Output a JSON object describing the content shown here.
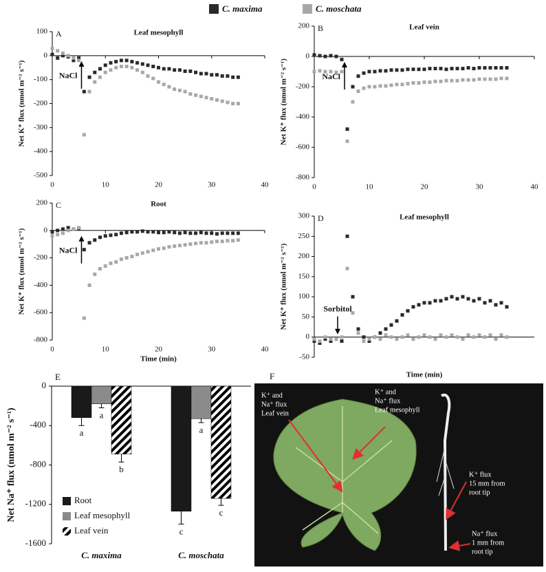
{
  "chart_data": [
    {
      "type": "scatter",
      "panel": "A",
      "title": "Leaf mesophyll",
      "ylabel": "Net K⁺ flux (nmol m⁻² s⁻¹)",
      "annotation": {
        "text": "NaCl",
        "x": 5.5
      },
      "x": [
        0,
        1,
        2,
        3,
        4,
        5,
        6,
        7,
        8,
        9,
        10,
        11,
        12,
        13,
        14,
        15,
        16,
        17,
        18,
        19,
        20,
        21,
        22,
        23,
        24,
        25,
        26,
        27,
        28,
        29,
        30,
        31,
        32,
        33,
        34,
        35
      ],
      "series": [
        {
          "name": "C. maxima",
          "color": "#2a2a2a",
          "values": [
            5,
            -10,
            0,
            -5,
            -20,
            -10,
            -150,
            -90,
            -70,
            -55,
            -40,
            -30,
            -25,
            -20,
            -20,
            -25,
            -30,
            -35,
            -40,
            -45,
            -50,
            -55,
            -55,
            -60,
            -60,
            -65,
            -65,
            -70,
            -75,
            -75,
            -80,
            -80,
            -85,
            -85,
            -90,
            -90
          ]
        },
        {
          "name": "C. moschata",
          "color": "#a8a8a8",
          "values": [
            30,
            20,
            10,
            0,
            -10,
            -20,
            -330,
            -150,
            -110,
            -90,
            -70,
            -60,
            -50,
            -45,
            -45,
            -50,
            -60,
            -70,
            -85,
            -95,
            -110,
            -120,
            -130,
            -140,
            -145,
            -150,
            -160,
            -165,
            -170,
            -175,
            -180,
            -185,
            -190,
            -195,
            -200,
            -200
          ]
        }
      ],
      "xlim": [
        0,
        40
      ],
      "xticks": [
        0,
        10,
        20,
        30,
        40
      ],
      "ylim": [
        -500,
        100
      ],
      "yticks": [
        -500,
        -400,
        -300,
        -200,
        -100,
        0,
        100
      ]
    },
    {
      "type": "scatter",
      "panel": "B",
      "title": "Leaf vein",
      "ylabel": "Net K⁺ flux (nmol m⁻² s⁻¹)",
      "annotation": {
        "text": "NaCl",
        "x": 5.5
      },
      "x": [
        0,
        1,
        2,
        3,
        4,
        5,
        6,
        7,
        8,
        9,
        10,
        11,
        12,
        13,
        14,
        15,
        16,
        17,
        18,
        19,
        20,
        21,
        22,
        23,
        24,
        25,
        26,
        27,
        28,
        29,
        30,
        31,
        32,
        33,
        34,
        35
      ],
      "series": [
        {
          "name": "C. maxima",
          "color": "#2a2a2a",
          "values": [
            10,
            5,
            0,
            5,
            0,
            -20,
            -480,
            -200,
            -130,
            -110,
            -100,
            -100,
            -95,
            -95,
            -90,
            -90,
            -90,
            -85,
            -85,
            -85,
            -85,
            -80,
            -80,
            -80,
            -85,
            -80,
            -80,
            -80,
            -75,
            -80,
            -75,
            -75,
            -75,
            -75,
            -75,
            -75
          ]
        },
        {
          "name": "C. moschata",
          "color": "#a8a8a8",
          "values": [
            -100,
            -95,
            -100,
            -100,
            -105,
            -100,
            -560,
            -300,
            -230,
            -210,
            -200,
            -200,
            -195,
            -195,
            -190,
            -185,
            -185,
            -180,
            -175,
            -175,
            -170,
            -170,
            -165,
            -165,
            -160,
            -160,
            -160,
            -155,
            -155,
            -155,
            -150,
            -150,
            -150,
            -150,
            -145,
            -145
          ]
        }
      ],
      "xlim": [
        0,
        40
      ],
      "xticks": [
        0,
        10,
        20,
        30,
        40
      ],
      "ylim": [
        -800,
        200
      ],
      "yticks": [
        -800,
        -600,
        -400,
        -200,
        0,
        200
      ]
    },
    {
      "type": "scatter",
      "panel": "C",
      "title": "Root",
      "ylabel": "Net K⁺ flux (nmol m⁻² s⁻¹)",
      "xlabel": "Time (min)",
      "annotation": {
        "text": "NaCl",
        "x": 5.5
      },
      "x": [
        0,
        1,
        2,
        3,
        4,
        5,
        6,
        7,
        8,
        9,
        10,
        11,
        12,
        13,
        14,
        15,
        16,
        17,
        18,
        19,
        20,
        21,
        22,
        23,
        24,
        25,
        26,
        27,
        28,
        29,
        30,
        31,
        32,
        33,
        34,
        35
      ],
      "series": [
        {
          "name": "C. maxima",
          "color": "#2a2a2a",
          "values": [
            -10,
            0,
            10,
            20,
            10,
            15,
            -140,
            -90,
            -70,
            -50,
            -40,
            -35,
            -30,
            -20,
            -15,
            -10,
            -10,
            -5,
            -10,
            -10,
            -15,
            -15,
            -10,
            -15,
            -20,
            -15,
            -20,
            -20,
            -15,
            -20,
            -20,
            -25,
            -20,
            -20,
            -20,
            -20
          ]
        },
        {
          "name": "C. moschata",
          "color": "#a8a8a8",
          "values": [
            -40,
            -30,
            -20,
            0,
            10,
            20,
            -640,
            -400,
            -320,
            -280,
            -260,
            -240,
            -230,
            -210,
            -200,
            -190,
            -175,
            -165,
            -155,
            -145,
            -135,
            -130,
            -120,
            -115,
            -110,
            -105,
            -100,
            -95,
            -90,
            -90,
            -85,
            -80,
            -80,
            -75,
            -75,
            -70
          ]
        }
      ],
      "xlim": [
        0,
        40
      ],
      "xticks": [
        0,
        10,
        20,
        30,
        40
      ],
      "ylim": [
        -800,
        200
      ],
      "yticks": [
        -800,
        -600,
        -400,
        -200,
        0,
        200
      ]
    },
    {
      "type": "scatter",
      "panel": "D",
      "title": "Leaf mesophyll",
      "ylabel": "Net K⁺ flux (nmol m⁻² s⁻¹)",
      "xlabel": "Time (min)",
      "annotation": {
        "text": "Sorbitol",
        "x": 5
      },
      "x": [
        0,
        1,
        2,
        3,
        4,
        5,
        6,
        7,
        8,
        9,
        10,
        11,
        12,
        13,
        14,
        15,
        16,
        17,
        18,
        19,
        20,
        21,
        22,
        23,
        24,
        25,
        26,
        27,
        28,
        29,
        30,
        31,
        32,
        33,
        34,
        35
      ],
      "series": [
        {
          "name": "C. maxima",
          "color": "#2a2a2a",
          "values": [
            -10,
            -15,
            -5,
            -10,
            -5,
            -10,
            250,
            100,
            20,
            0,
            -10,
            0,
            10,
            20,
            30,
            40,
            55,
            65,
            75,
            80,
            85,
            85,
            90,
            90,
            95,
            100,
            95,
            100,
            95,
            90,
            95,
            85,
            90,
            80,
            85,
            75
          ]
        },
        {
          "name": "C. moschata",
          "color": "#a8a8a8",
          "values": [
            -5,
            -10,
            0,
            -5,
            -5,
            0,
            170,
            60,
            10,
            -10,
            -5,
            0,
            -5,
            5,
            0,
            -5,
            0,
            5,
            -5,
            0,
            5,
            0,
            -5,
            5,
            0,
            5,
            0,
            -5,
            5,
            0,
            5,
            0,
            5,
            -5,
            5,
            0
          ]
        }
      ],
      "xlim": [
        0,
        40
      ],
      "ylim": [
        -50,
        300
      ],
      "yticks": [
        -50,
        0,
        50,
        100,
        150,
        200,
        250,
        300
      ]
    },
    {
      "type": "bar",
      "panel": "E",
      "ylabel": "Net Na⁺ flux (nmol m⁻² s⁻¹)",
      "categories": [
        "C. maxima",
        "C. moschata"
      ],
      "series": [
        {
          "name": "Root",
          "color": "#1a1a1a",
          "values": [
            -320,
            -1270
          ],
          "errors": [
            80,
            130
          ],
          "letters": [
            "a",
            "c"
          ]
        },
        {
          "name": "Leaf mesophyll",
          "color": "#8a8a8a",
          "values": [
            -180,
            -330
          ],
          "errors": [
            40,
            40
          ],
          "letters": [
            "a",
            "a"
          ]
        },
        {
          "name": "Leaf vein",
          "color": "#000000",
          "pattern": "hatch",
          "values": [
            -690,
            -1140
          ],
          "errors": [
            80,
            70
          ],
          "letters": [
            "b",
            "c"
          ]
        }
      ],
      "ylim": [
        -1600,
        0
      ],
      "yticks": [
        -1600,
        -1200,
        -800,
        -400,
        0
      ]
    }
  ],
  "photo": {
    "panel": "F",
    "labels": [
      {
        "lines": [
          "K⁺ and",
          "Na⁺ flux",
          "Leaf vein"
        ]
      },
      {
        "lines": [
          "K⁺ and",
          "Na⁺ flux",
          "Leaf mesophyll"
        ]
      },
      {
        "lines": [
          "K⁺ flux",
          "15 mm from",
          "root tip"
        ]
      },
      {
        "lines": [
          "Na⁺ flux",
          "1 mm from",
          "root tip"
        ]
      }
    ]
  }
}
